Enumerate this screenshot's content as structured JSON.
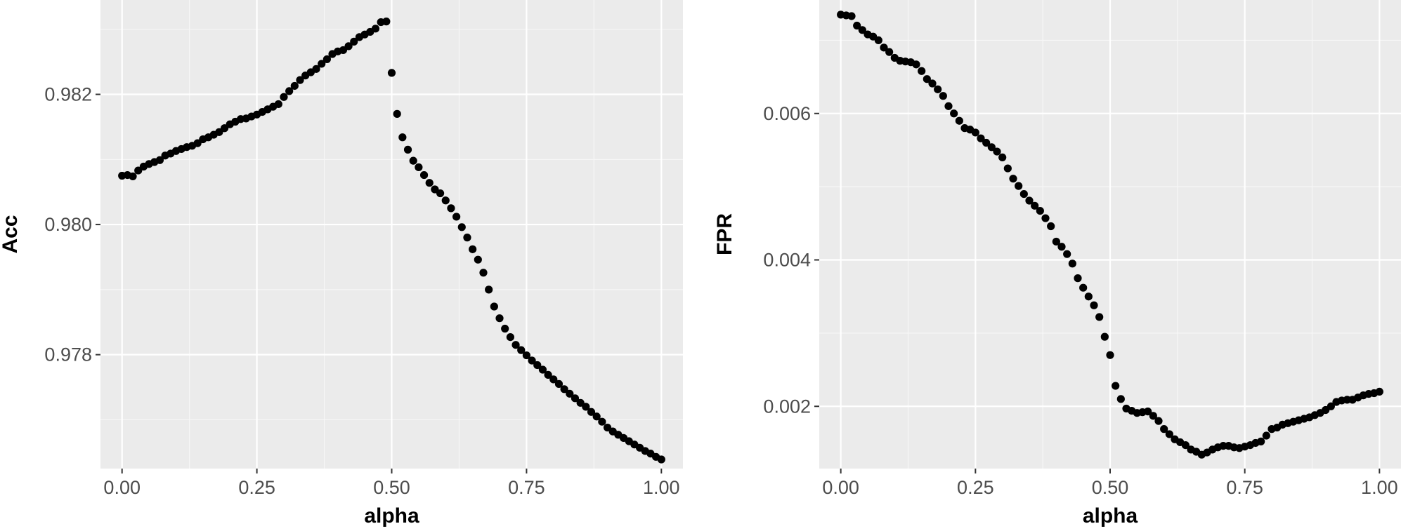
{
  "chart_data": [
    {
      "type": "scatter",
      "xlabel": "alpha",
      "ylabel": "Acc",
      "xlim": [
        -0.04,
        1.04
      ],
      "ylim": [
        0.97625,
        0.98345
      ],
      "x_ticks": [
        0,
        0.25,
        0.5,
        0.75,
        1
      ],
      "x_tick_labels": [
        "0.00",
        "0.25",
        "0.50",
        "0.75",
        "1.00"
      ],
      "y_ticks": [
        0.978,
        0.98,
        0.982
      ],
      "y_tick_labels": [
        "0.978",
        "0.980",
        "0.982"
      ],
      "grid": true,
      "x": [
        0,
        0.01,
        0.02,
        0.03,
        0.04,
        0.05,
        0.06,
        0.07,
        0.08,
        0.09,
        0.1,
        0.11,
        0.12,
        0.13,
        0.14,
        0.15,
        0.16,
        0.17,
        0.18,
        0.19,
        0.2,
        0.21,
        0.22,
        0.23,
        0.24,
        0.25,
        0.26,
        0.27,
        0.28,
        0.29,
        0.3,
        0.31,
        0.32,
        0.33,
        0.34,
        0.35,
        0.36,
        0.37,
        0.38,
        0.39,
        0.4,
        0.41,
        0.42,
        0.43,
        0.44,
        0.45,
        0.46,
        0.47,
        0.48,
        0.49,
        0.5,
        0.51,
        0.52,
        0.53,
        0.54,
        0.55,
        0.56,
        0.57,
        0.58,
        0.59,
        0.6,
        0.61,
        0.62,
        0.63,
        0.64,
        0.65,
        0.66,
        0.67,
        0.68,
        0.69,
        0.7,
        0.71,
        0.72,
        0.73,
        0.74,
        0.75,
        0.76,
        0.77,
        0.78,
        0.79,
        0.8,
        0.81,
        0.82,
        0.83,
        0.84,
        0.85,
        0.86,
        0.87,
        0.88,
        0.89,
        0.9,
        0.91,
        0.92,
        0.93,
        0.94,
        0.95,
        0.96,
        0.97,
        0.98,
        0.99,
        1
      ],
      "y": [
        0.98075,
        0.98076,
        0.98074,
        0.98083,
        0.98089,
        0.98093,
        0.98096,
        0.98099,
        0.98106,
        0.98109,
        0.98113,
        0.98116,
        0.98119,
        0.98121,
        0.98125,
        0.98131,
        0.98134,
        0.98138,
        0.98142,
        0.98148,
        0.98154,
        0.98158,
        0.98162,
        0.98163,
        0.98166,
        0.98169,
        0.98173,
        0.98177,
        0.98181,
        0.98185,
        0.98196,
        0.98205,
        0.98213,
        0.98222,
        0.98229,
        0.98234,
        0.98239,
        0.98247,
        0.98254,
        0.98262,
        0.98266,
        0.98268,
        0.98274,
        0.98281,
        0.98288,
        0.98292,
        0.98296,
        0.98301,
        0.98311,
        0.98312,
        0.98233,
        0.9817,
        0.98134,
        0.98115,
        0.98098,
        0.98088,
        0.98076,
        0.98064,
        0.98054,
        0.98048,
        0.98037,
        0.98025,
        0.98012,
        0.97996,
        0.9798,
        0.97962,
        0.97946,
        0.97926,
        0.979,
        0.97874,
        0.97856,
        0.9784,
        0.97827,
        0.97815,
        0.97807,
        0.97799,
        0.97791,
        0.97784,
        0.97777,
        0.97769,
        0.97762,
        0.97755,
        0.97747,
        0.9774,
        0.97733,
        0.97726,
        0.9772,
        0.97712,
        0.97705,
        0.97697,
        0.97688,
        0.97682,
        0.97677,
        0.97672,
        0.97667,
        0.97662,
        0.97657,
        0.97652,
        0.97648,
        0.97643,
        0.97639
      ]
    },
    {
      "type": "scatter",
      "xlabel": "alpha",
      "ylabel": "FPR",
      "xlim": [
        -0.04,
        1.04
      ],
      "ylim": [
        0.00115,
        0.00755
      ],
      "x_ticks": [
        0,
        0.25,
        0.5,
        0.75,
        1
      ],
      "x_tick_labels": [
        "0.00",
        "0.25",
        "0.50",
        "0.75",
        "1.00"
      ],
      "y_ticks": [
        0.002,
        0.004,
        0.006
      ],
      "y_tick_labels": [
        "0.002",
        "0.004",
        "0.006"
      ],
      "grid": true,
      "x": [
        0,
        0.01,
        0.02,
        0.03,
        0.04,
        0.05,
        0.06,
        0.07,
        0.08,
        0.09,
        0.1,
        0.11,
        0.12,
        0.13,
        0.14,
        0.15,
        0.16,
        0.17,
        0.18,
        0.19,
        0.2,
        0.21,
        0.22,
        0.23,
        0.24,
        0.25,
        0.26,
        0.27,
        0.28,
        0.29,
        0.3,
        0.31,
        0.32,
        0.33,
        0.34,
        0.35,
        0.36,
        0.37,
        0.38,
        0.39,
        0.4,
        0.41,
        0.42,
        0.43,
        0.44,
        0.45,
        0.46,
        0.47,
        0.48,
        0.49,
        0.5,
        0.51,
        0.52,
        0.53,
        0.54,
        0.55,
        0.56,
        0.57,
        0.58,
        0.59,
        0.6,
        0.61,
        0.62,
        0.63,
        0.64,
        0.65,
        0.66,
        0.67,
        0.68,
        0.69,
        0.7,
        0.71,
        0.72,
        0.73,
        0.74,
        0.75,
        0.76,
        0.77,
        0.78,
        0.79,
        0.8,
        0.81,
        0.82,
        0.83,
        0.84,
        0.85,
        0.86,
        0.87,
        0.88,
        0.89,
        0.9,
        0.91,
        0.92,
        0.93,
        0.94,
        0.95,
        0.96,
        0.97,
        0.98,
        0.99,
        1
      ],
      "y": [
        0.00735,
        0.00734,
        0.00733,
        0.0072,
        0.00714,
        0.00708,
        0.00705,
        0.007,
        0.0069,
        0.00684,
        0.00676,
        0.00672,
        0.00671,
        0.0067,
        0.00667,
        0.00658,
        0.00647,
        0.00641,
        0.00633,
        0.00624,
        0.0061,
        0.006,
        0.0059,
        0.0058,
        0.00578,
        0.00574,
        0.00566,
        0.0056,
        0.00554,
        0.00548,
        0.0054,
        0.00525,
        0.00511,
        0.00501,
        0.0049,
        0.00481,
        0.00474,
        0.00467,
        0.00457,
        0.00446,
        0.00425,
        0.00418,
        0.00408,
        0.00395,
        0.00375,
        0.00362,
        0.0035,
        0.00338,
        0.00322,
        0.00295,
        0.0027,
        0.00228,
        0.0021,
        0.00197,
        0.00194,
        0.00191,
        0.00192,
        0.00193,
        0.00187,
        0.0018,
        0.00169,
        0.00162,
        0.00155,
        0.00151,
        0.00147,
        0.00141,
        0.00138,
        0.00134,
        0.00137,
        0.00141,
        0.00144,
        0.00146,
        0.00146,
        0.00144,
        0.00143,
        0.00145,
        0.00147,
        0.0015,
        0.00152,
        0.0016,
        0.00169,
        0.00171,
        0.00175,
        0.00177,
        0.00179,
        0.00181,
        0.00183,
        0.00185,
        0.00188,
        0.00191,
        0.00195,
        0.002,
        0.00206,
        0.00208,
        0.00209,
        0.00209,
        0.00212,
        0.00215,
        0.00217,
        0.00218,
        0.0022
      ]
    }
  ]
}
